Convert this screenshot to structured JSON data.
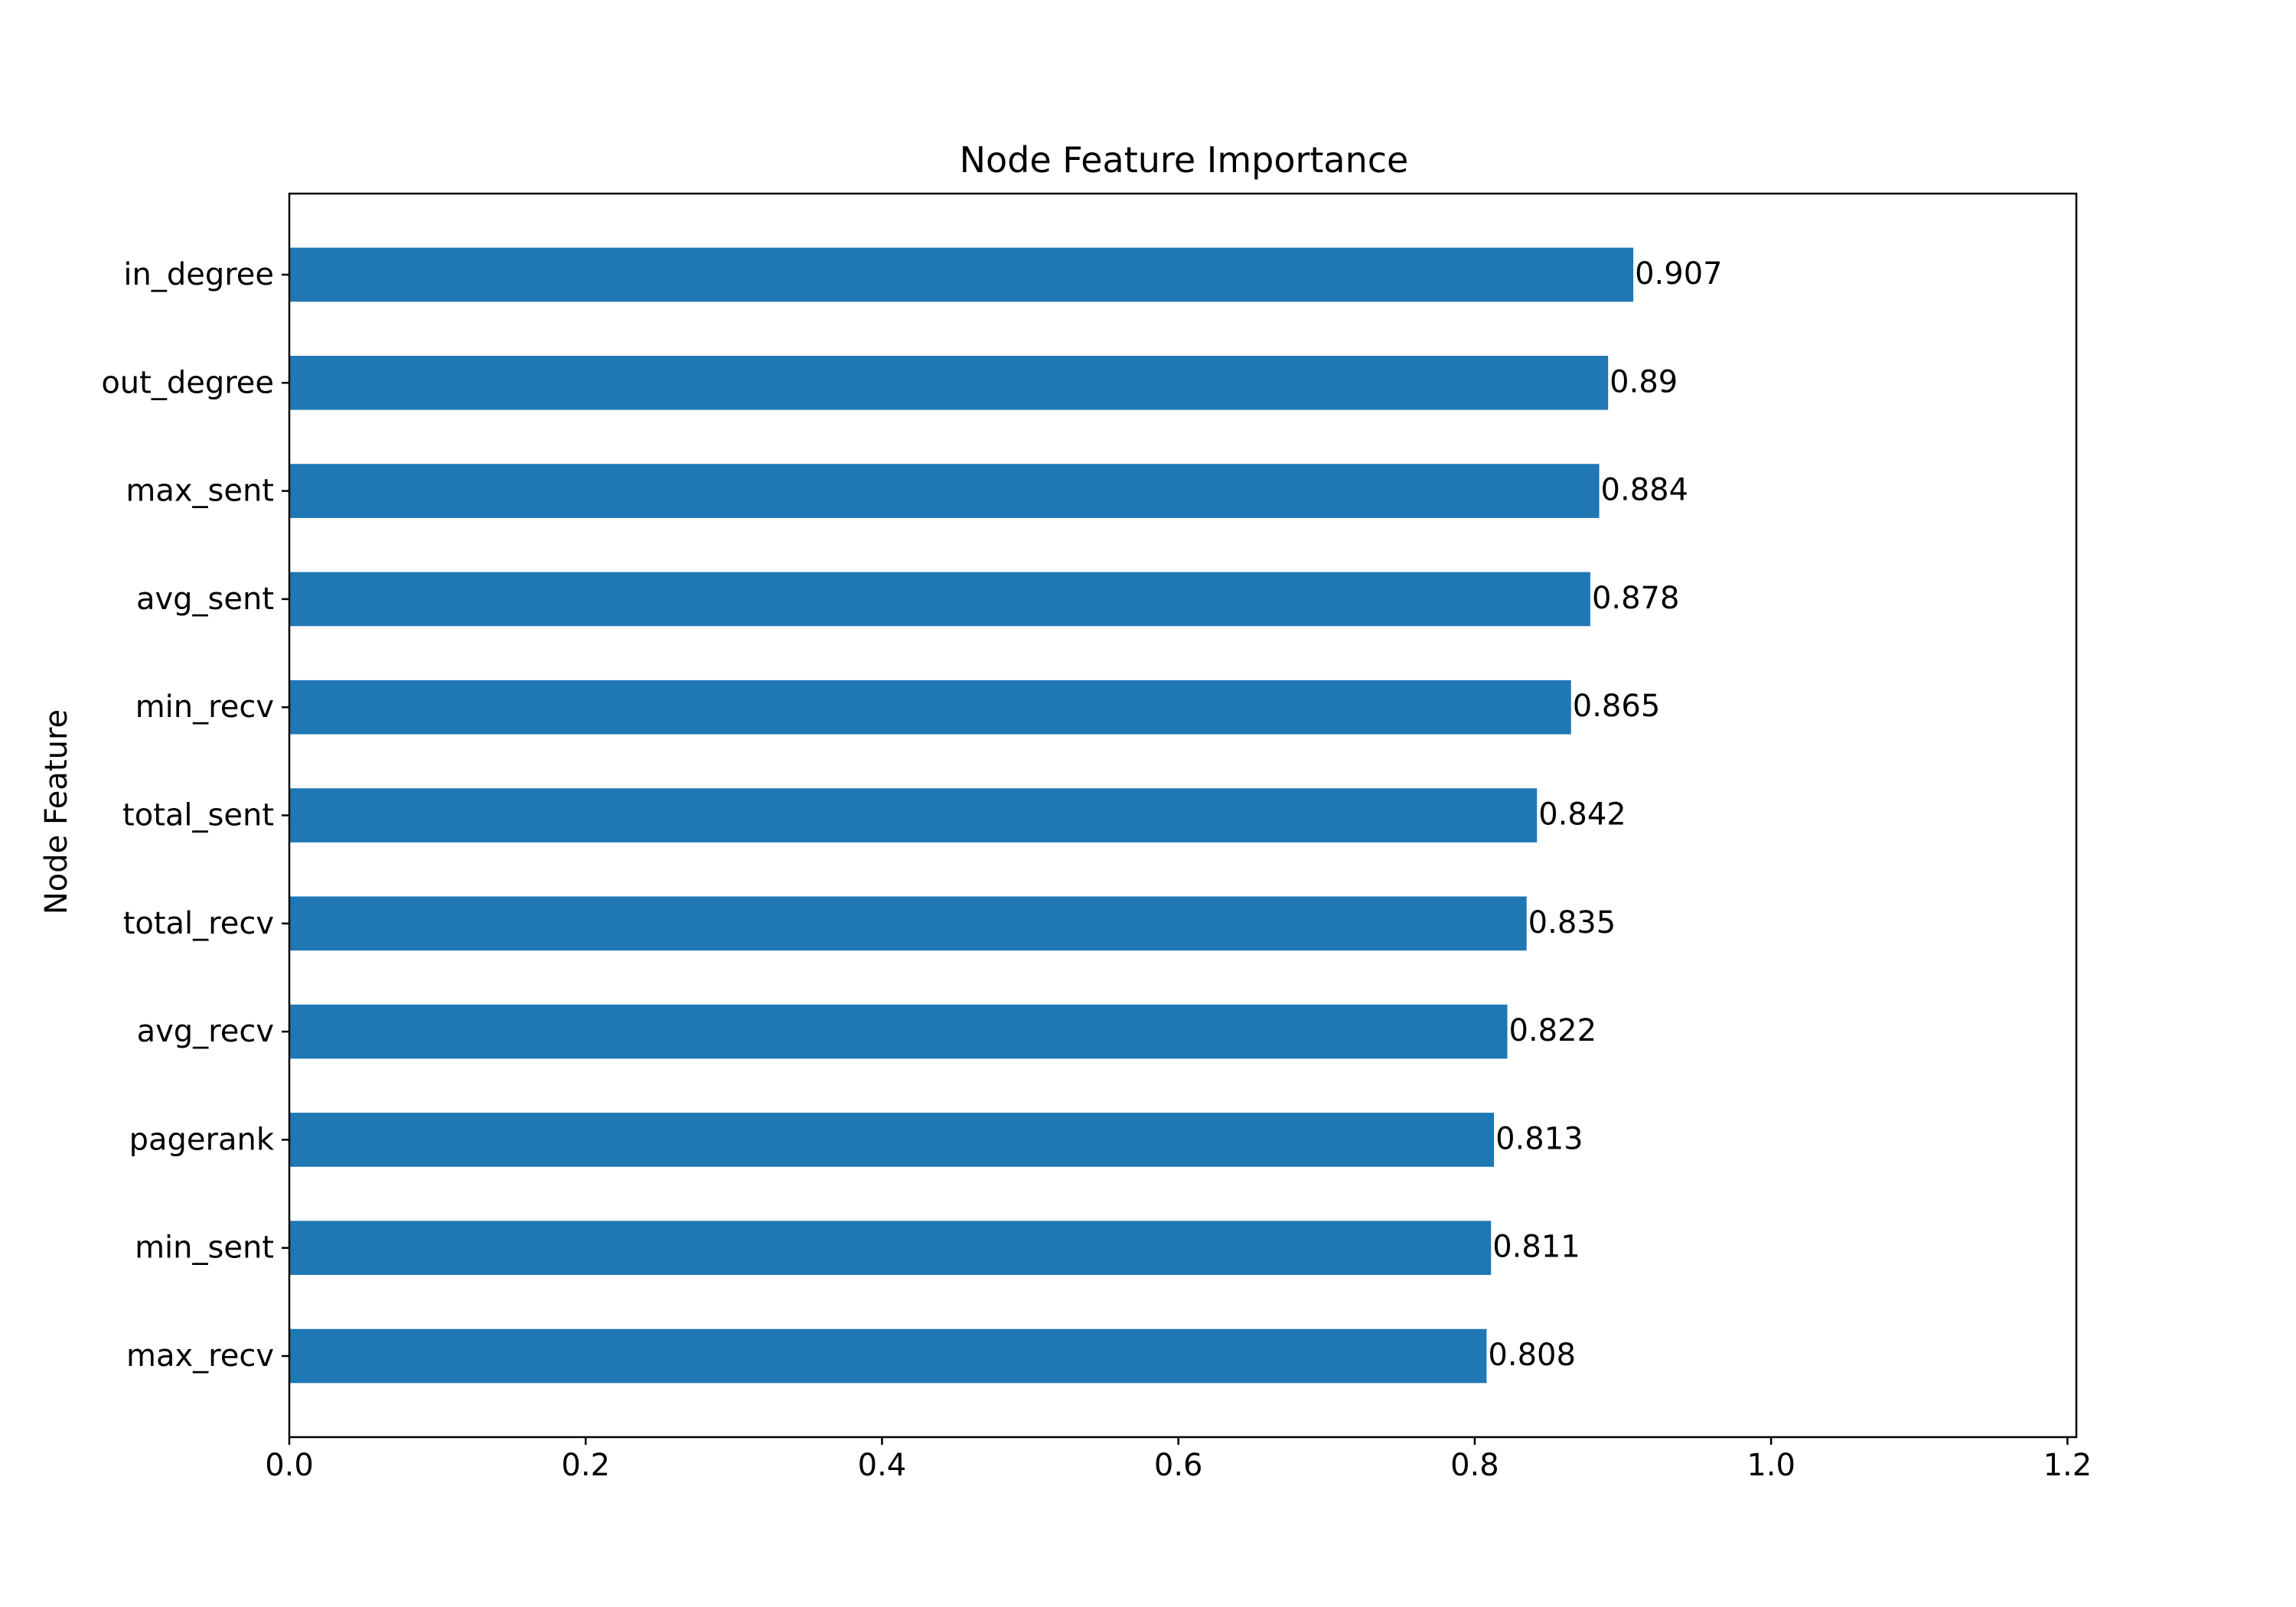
{
  "chart_data": {
    "type": "bar",
    "orientation": "horizontal",
    "title": "Node Feature Importance",
    "xlabel": "",
    "ylabel": "Node Feature",
    "xlim": [
      0,
      1.2
    ],
    "xticks": [
      0.0,
      0.2,
      0.4,
      0.6,
      0.8,
      1.0,
      1.2
    ],
    "xtick_labels": [
      "0.0",
      "0.2",
      "0.4",
      "0.6",
      "0.8",
      "1.0",
      "1.2"
    ],
    "categories": [
      "in_degree",
      "out_degree",
      "max_sent",
      "avg_sent",
      "min_recv",
      "total_sent",
      "total_recv",
      "avg_recv",
      "pagerank",
      "min_sent",
      "max_recv"
    ],
    "values": [
      0.907,
      0.89,
      0.884,
      0.878,
      0.865,
      0.842,
      0.835,
      0.822,
      0.813,
      0.811,
      0.808
    ],
    "value_labels": [
      "0.907",
      "0.89",
      "0.884",
      "0.878",
      "0.865",
      "0.842",
      "0.835",
      "0.822",
      "0.813",
      "0.811",
      "0.808"
    ],
    "bar_color": "#1f77b4",
    "grid": false,
    "legend": false
  }
}
